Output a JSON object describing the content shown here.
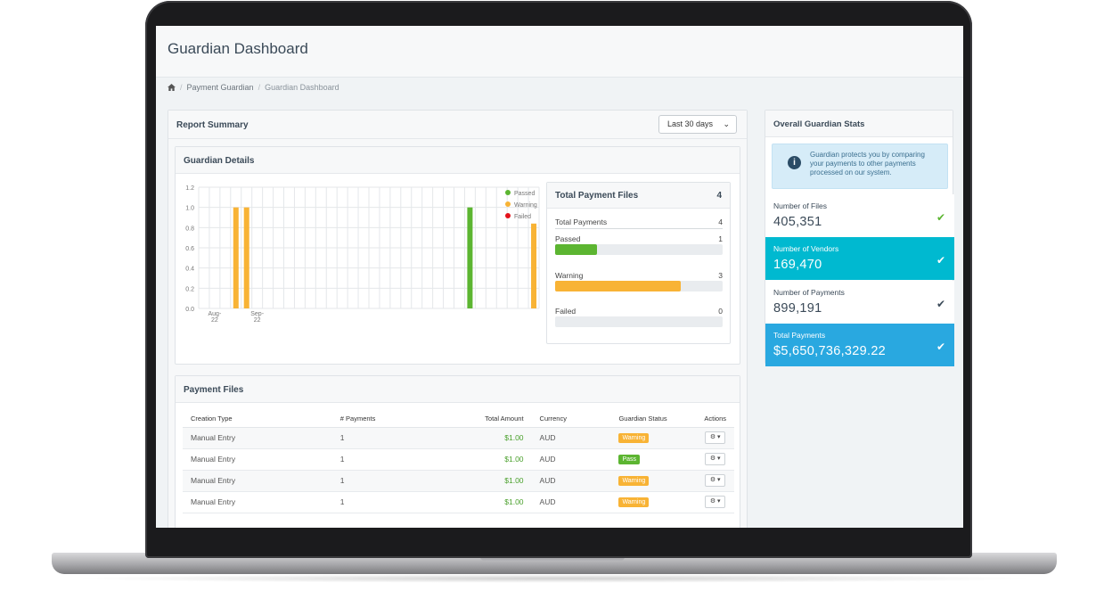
{
  "page": {
    "title": "Guardian Dashboard"
  },
  "breadcrumb": {
    "home_icon": "home-icon",
    "items": [
      "Payment Guardian",
      "Guardian Dashboard"
    ]
  },
  "report_summary": {
    "title": "Report Summary",
    "range_select": "Last 30 days"
  },
  "guardian_details": {
    "title": "Guardian Details"
  },
  "chart_data": {
    "type": "bar",
    "x_tick_labels": [
      [
        "Aug-",
        "22"
      ],
      [
        "Sep-",
        "22"
      ]
    ],
    "y_ticks": [
      "1.2",
      "1.0",
      "0.8",
      "0.6",
      "0.4",
      "0.2",
      "0.0"
    ],
    "ylim": [
      0,
      1.2
    ],
    "grid": true,
    "legend_position": "top-right",
    "series": [
      {
        "name": "Passed",
        "color": "#5cb531",
        "bars": [
          {
            "slot": 25,
            "value": 1.0
          }
        ]
      },
      {
        "name": "Warning",
        "color": "#f8b335",
        "bars": [
          {
            "slot": 3,
            "value": 1.0
          },
          {
            "slot": 4,
            "value": 1.0
          },
          {
            "slot": 31,
            "value": 0.84
          }
        ]
      },
      {
        "name": "Failed",
        "color": "#e3131b",
        "bars": []
      }
    ]
  },
  "total_payment_files": {
    "title": "Total Payment Files",
    "count": "4",
    "total_payments_label": "Total Payments",
    "total_payments_value": "4",
    "passed_label": "Passed",
    "passed_value": "1",
    "passed_fraction": 0.25,
    "passed_color": "#5cb531",
    "warning_label": "Warning",
    "warning_value": "3",
    "warning_fraction": 0.75,
    "warning_color": "#f8b335",
    "failed_label": "Failed",
    "failed_value": "0",
    "failed_fraction": 0.0
  },
  "payment_files": {
    "title": "Payment Files",
    "columns": [
      "Creation Type",
      "# Payments",
      "Total Amount",
      "Currency",
      "Guardian Status",
      "Actions"
    ],
    "rows": [
      {
        "creation_type": "Manual Entry",
        "payments": "1",
        "amount": "$1.00",
        "currency": "AUD",
        "status": "Warning",
        "status_color": "#f8b335"
      },
      {
        "creation_type": "Manual Entry",
        "payments": "1",
        "amount": "$1.00",
        "currency": "AUD",
        "status": "Pass",
        "status_color": "#5cb531"
      },
      {
        "creation_type": "Manual Entry",
        "payments": "1",
        "amount": "$1.00",
        "currency": "AUD",
        "status": "Warning",
        "status_color": "#f8b335"
      },
      {
        "creation_type": "Manual Entry",
        "payments": "1",
        "amount": "$1.00",
        "currency": "AUD",
        "status": "Warning",
        "status_color": "#f8b335"
      }
    ],
    "action_icon": "gear-icon"
  },
  "overall_stats": {
    "title": "Overall Guardian Stats",
    "info_text": "Guardian protects you by comparing your payments to other payments processed on our system.",
    "items": [
      {
        "label": "Number of Files",
        "value": "405,351",
        "bg": "#ffffff",
        "fg": "#3b4a58",
        "check_color": "#5cb531"
      },
      {
        "label": "Number of Vendors",
        "value": "169,470",
        "bg": "#00b9d0",
        "fg": "#ffffff",
        "check_color": "#ffffff"
      },
      {
        "label": "Number of Payments",
        "value": "899,191",
        "bg": "#ffffff",
        "fg": "#3b4a58",
        "check_color": "#3b4a58"
      },
      {
        "label": "Total Payments",
        "value": "$5,650,736,329.22",
        "bg": "#29a8e0",
        "fg": "#ffffff",
        "check_color": "#ffffff"
      }
    ]
  }
}
